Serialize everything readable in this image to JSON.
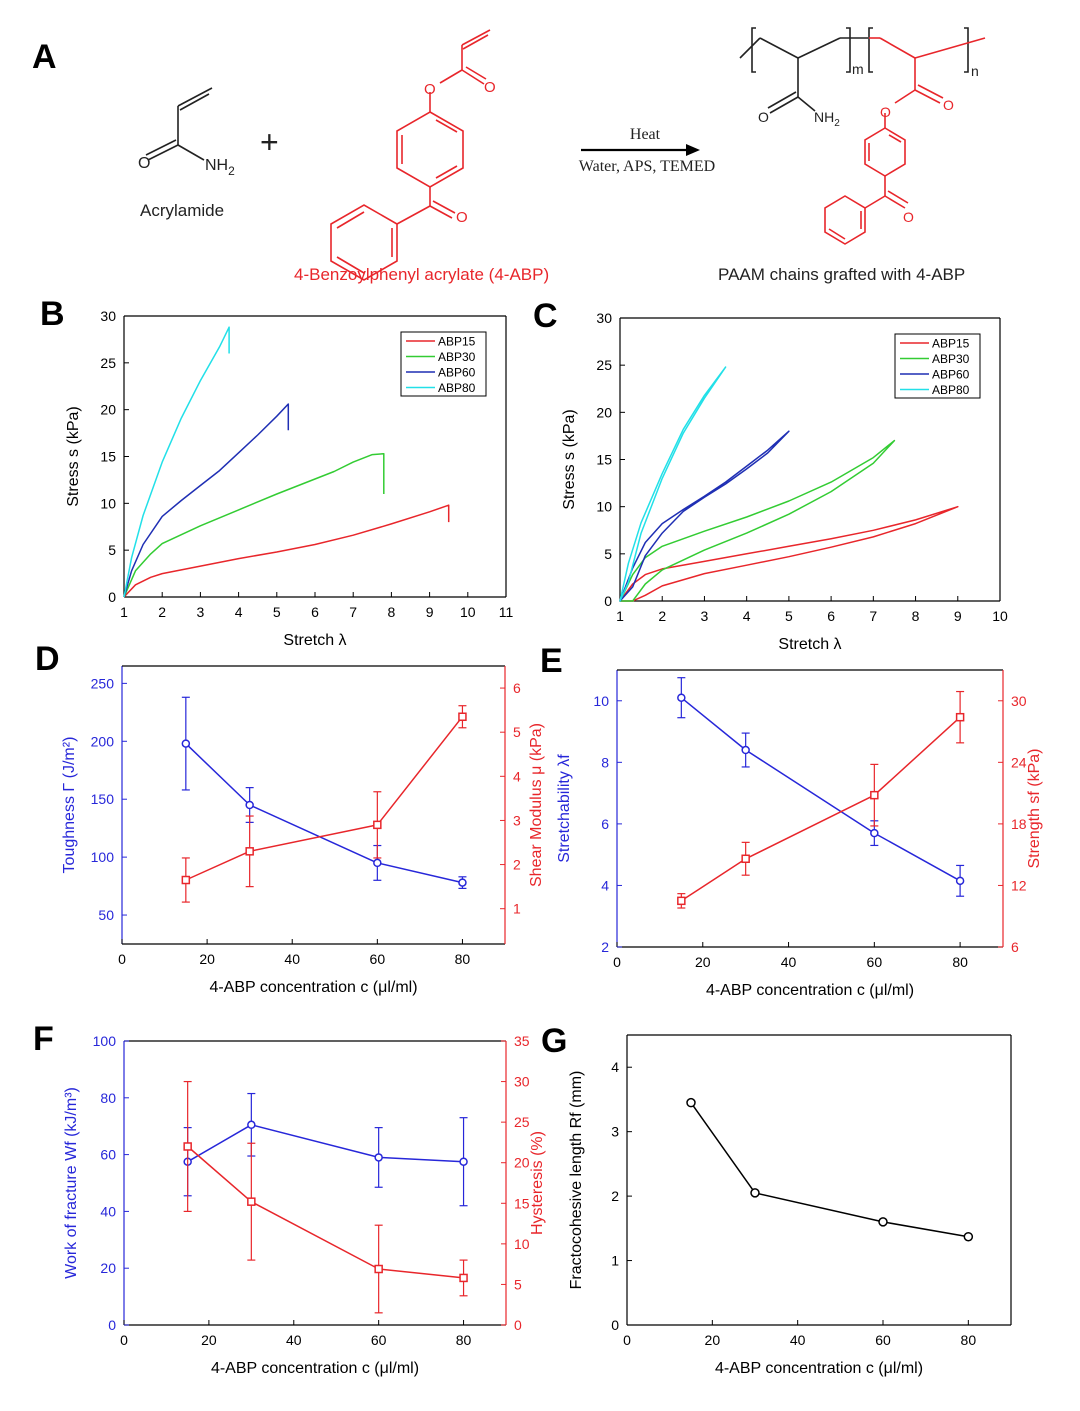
{
  "panel_labels": [
    "A",
    "B",
    "C",
    "D",
    "E",
    "F",
    "G"
  ],
  "scheme": {
    "reactant1_name": "Acrylamide",
    "reactant1_group": "NH",
    "reactant1_sub": "2",
    "plus": "+",
    "reactant2_name": "4-Benzoylphenyl acrylate (4-ABP)",
    "arrow_top": "Heat",
    "arrow_bottom": "Water, APS, TEMED",
    "product_name": "PAAM chains grafted with 4-ABP",
    "product_m": "m",
    "product_n": "n",
    "product_nh2": "NH",
    "product_nh2_sub": "2",
    "o": "O"
  },
  "chart_data": [
    {
      "panel": "B",
      "type": "line",
      "xlabel": "Stretch λ",
      "ylabel": "Stress s (kPa)",
      "xlim": [
        1,
        11
      ],
      "ylim": [
        0,
        30
      ],
      "xticks": [
        1,
        2,
        3,
        4,
        5,
        6,
        7,
        8,
        9,
        10,
        11
      ],
      "yticks": [
        0,
        5,
        10,
        15,
        20,
        25,
        30
      ],
      "legend": "top-right",
      "series": [
        {
          "name": "ABP15",
          "color": "#e8262b",
          "x": [
            1,
            1.3,
            1.7,
            2,
            3,
            4,
            5,
            6,
            7,
            8,
            9,
            9.5,
            9.5
          ],
          "y": [
            0,
            1.3,
            2.1,
            2.5,
            3.3,
            4.1,
            4.8,
            5.6,
            6.6,
            7.8,
            9.1,
            9.8,
            8.0
          ]
        },
        {
          "name": "ABP30",
          "color": "#33cc33",
          "x": [
            1,
            1.3,
            1.7,
            2,
            3,
            4,
            5,
            6,
            6.5,
            7,
            7.5,
            7.8,
            7.8
          ],
          "y": [
            0,
            2.8,
            4.6,
            5.7,
            7.6,
            9.3,
            11,
            12.6,
            13.4,
            14.4,
            15.2,
            15.3,
            11.0
          ]
        },
        {
          "name": "ABP60",
          "color": "#1f2fb4",
          "x": [
            1,
            1.2,
            1.5,
            2,
            2.5,
            3,
            3.5,
            4,
            4.5,
            5,
            5.3,
            5.3
          ],
          "y": [
            0,
            2.8,
            5.6,
            8.6,
            10.3,
            11.9,
            13.5,
            15.4,
            17.3,
            19.3,
            20.6,
            17.8
          ]
        },
        {
          "name": "ABP80",
          "color": "#22e0e8",
          "x": [
            1,
            1.2,
            1.5,
            2,
            2.5,
            3,
            3.5,
            3.75,
            3.75
          ],
          "y": [
            0,
            4.2,
            8.7,
            14.4,
            19.1,
            23.1,
            26.7,
            28.8,
            26.0
          ]
        }
      ]
    },
    {
      "panel": "C",
      "type": "line",
      "xlabel": "Stretch λ",
      "ylabel": "Stress s (kPa)",
      "xlim": [
        1,
        10
      ],
      "ylim": [
        0,
        30
      ],
      "xticks": [
        1,
        2,
        3,
        4,
        5,
        6,
        7,
        8,
        9,
        10
      ],
      "yticks": [
        0,
        5,
        10,
        15,
        20,
        25,
        30
      ],
      "legend": "top-right",
      "series": [
        {
          "name": "ABP15",
          "color": "#e8262b",
          "x": [
            1,
            1.3,
            1.6,
            2,
            3,
            4,
            5,
            6,
            7,
            8,
            9,
            8,
            7,
            6,
            5,
            4,
            3,
            2,
            1.6,
            1.3
          ],
          "y": [
            0,
            1.8,
            2.8,
            3.4,
            4.2,
            5.0,
            5.8,
            6.6,
            7.5,
            8.6,
            10.0,
            8.2,
            6.8,
            5.7,
            4.7,
            3.8,
            2.9,
            1.6,
            0.6,
            0
          ]
        },
        {
          "name": "ABP30",
          "color": "#33cc33",
          "x": [
            1,
            1.3,
            1.6,
            2,
            3,
            4,
            5,
            6,
            7,
            7.5,
            7,
            6,
            5,
            4,
            3,
            2,
            1.6,
            1.3
          ],
          "y": [
            0,
            2.8,
            4.6,
            5.8,
            7.4,
            8.9,
            10.6,
            12.6,
            15.2,
            17.0,
            14.6,
            11.6,
            9.2,
            7.2,
            5.4,
            3.3,
            1.8,
            0
          ]
        },
        {
          "name": "ABP60",
          "color": "#1f2fb4",
          "x": [
            1,
            1.3,
            1.6,
            2,
            2.5,
            3,
            3.5,
            4,
            4.5,
            5,
            4.5,
            4,
            3.5,
            3,
            2.5,
            2,
            1.6,
            1.3
          ],
          "y": [
            0,
            3.5,
            6.2,
            8.2,
            9.7,
            11.1,
            12.6,
            14.3,
            16.0,
            18.0,
            15.7,
            14.0,
            12.4,
            11.0,
            9.5,
            7.2,
            4.8,
            1.5
          ]
        },
        {
          "name": "ABP80",
          "color": "#22e0e8",
          "x": [
            1,
            1.2,
            1.5,
            2,
            2.5,
            3,
            3.5,
            3,
            2.5,
            2,
            1.5,
            1.2
          ],
          "y": [
            0,
            4.0,
            8.3,
            13.5,
            18.2,
            21.8,
            24.8,
            21.5,
            17.8,
            13.0,
            7.2,
            2.0
          ]
        }
      ]
    },
    {
      "panel": "D",
      "type": "line",
      "xlabel": "4-ABP concentration  c (μl/ml)",
      "ylabel": "Toughness Γ (J/m²)",
      "ylabel2": "Shear Modulus μ (kPa)",
      "xlim": [
        0,
        90
      ],
      "ylim": [
        25,
        265
      ],
      "ylim2": [
        0.2,
        6.5
      ],
      "xticks": [
        0,
        20,
        40,
        60,
        80
      ],
      "yticks": [
        50,
        100,
        150,
        200,
        250
      ],
      "yticks2": [
        1,
        2,
        3,
        4,
        5,
        6
      ],
      "series": [
        {
          "name": "Toughness",
          "axis": "left",
          "color": "#2727d9",
          "marker": "circle",
          "x": [
            15,
            30,
            60,
            80
          ],
          "y": [
            198,
            145,
            95,
            78
          ],
          "err": [
            40,
            15,
            15,
            5
          ]
        },
        {
          "name": "Shear Modulus",
          "axis": "right",
          "color": "#e8262b",
          "marker": "square",
          "x": [
            15,
            30,
            60,
            80
          ],
          "y": [
            1.65,
            2.3,
            2.9,
            5.35
          ],
          "err": [
            0.5,
            0.8,
            0.75,
            0.25
          ]
        }
      ]
    },
    {
      "panel": "E",
      "type": "line",
      "xlabel": "4-ABP concentration  c (μl/ml)",
      "ylabel": "Stretchability λf",
      "ylabel2": "Strength sf (kPa)",
      "xlim": [
        0,
        90
      ],
      "ylim": [
        2,
        11
      ],
      "ylim2": [
        6,
        33
      ],
      "xticks": [
        0,
        20,
        40,
        60,
        80
      ],
      "yticks": [
        2,
        4,
        6,
        8,
        10
      ],
      "yticks2": [
        6,
        12,
        18,
        24,
        30
      ],
      "series": [
        {
          "name": "Stretchability",
          "axis": "left",
          "color": "#2727d9",
          "marker": "circle",
          "x": [
            15,
            30,
            60,
            80
          ],
          "y": [
            10.1,
            8.4,
            5.7,
            4.15
          ],
          "err": [
            0.65,
            0.55,
            0.4,
            0.5
          ]
        },
        {
          "name": "Strength",
          "axis": "right",
          "color": "#e8262b",
          "marker": "square",
          "x": [
            15,
            30,
            60,
            80
          ],
          "y": [
            10.5,
            14.6,
            20.8,
            28.4
          ],
          "err": [
            0.7,
            1.6,
            3.0,
            2.5
          ]
        }
      ]
    },
    {
      "panel": "F",
      "type": "line",
      "xlabel": "4-ABP concentration  c (μl/ml)",
      "ylabel": "Work of fracture Wf (kJ/m³)",
      "ylabel2": "Hysteresis (%)",
      "xlim": [
        0,
        90
      ],
      "ylim": [
        0,
        100
      ],
      "ylim2": [
        0,
        35
      ],
      "xticks": [
        0,
        20,
        40,
        60,
        80
      ],
      "yticks": [
        0,
        20,
        40,
        60,
        80,
        100
      ],
      "yticks2": [
        0,
        5,
        10,
        15,
        20,
        25,
        30,
        35
      ],
      "series": [
        {
          "name": "Work of fracture",
          "axis": "left",
          "color": "#2727d9",
          "marker": "circle",
          "x": [
            15,
            30,
            60,
            80
          ],
          "y": [
            57.5,
            70.5,
            59,
            57.5
          ],
          "err": [
            12,
            11,
            10.5,
            15.5
          ]
        },
        {
          "name": "Hysteresis",
          "axis": "right",
          "color": "#e8262b",
          "marker": "square",
          "x": [
            15,
            30,
            60,
            80
          ],
          "y": [
            22,
            15.2,
            6.9,
            5.8
          ],
          "err": [
            8,
            7.2,
            5.4,
            2.2
          ]
        }
      ]
    },
    {
      "panel": "G",
      "type": "line",
      "xlabel": "4-ABP concentration  c (μl/ml)",
      "ylabel": "Fractocohesive length Rf (mm)",
      "xlim": [
        0,
        90
      ],
      "ylim": [
        0,
        4.5
      ],
      "xticks": [
        0,
        20,
        40,
        60,
        80
      ],
      "yticks": [
        0,
        1,
        2,
        3,
        4
      ],
      "series": [
        {
          "name": "Fractocohesive length",
          "color": "#000000",
          "marker": "circle",
          "x": [
            15,
            30,
            60,
            80
          ],
          "y": [
            3.45,
            2.05,
            1.6,
            1.37
          ]
        }
      ]
    }
  ]
}
